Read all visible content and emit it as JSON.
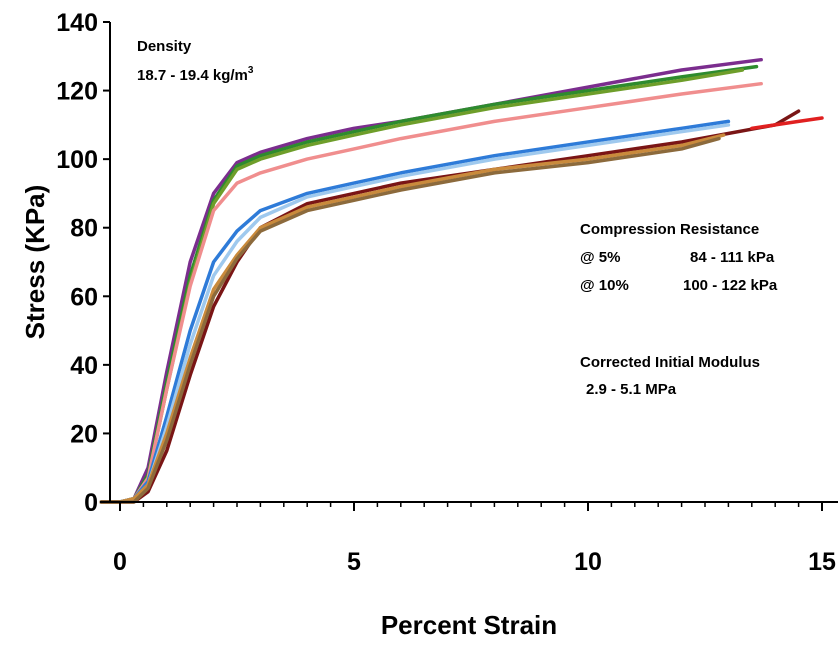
{
  "chart_data": {
    "type": "line",
    "title": "",
    "xlabel": "Percent Strain",
    "ylabel": "Stress (KPa)",
    "xlim": [
      0,
      15
    ],
    "ylim": [
      0,
      140
    ],
    "x_ticks": [
      0,
      5,
      10,
      15
    ],
    "y_ticks": [
      0,
      20,
      40,
      60,
      80,
      100,
      120,
      140
    ],
    "grid": false,
    "annotations": {
      "density_label": "Density",
      "density_value": "18.7 - 19.4 kg/m",
      "density_superscript": "3",
      "compression_title": "Compression Resistance",
      "at5_label": "@ 5%",
      "at5_value": "84 - 111 kPa",
      "at10_label": "@ 10%",
      "at10_value": "100 - 122 kPa",
      "modulus_title": "Corrected Initial Modulus",
      "modulus_value": "2.9 - 5.1 MPa"
    },
    "series": [
      {
        "color": "#7B2D8E",
        "x": [
          -0.4,
          0,
          0.3,
          0.6,
          1.0,
          1.5,
          2.0,
          2.5,
          3.0,
          4.0,
          5.0,
          6.0,
          8.0,
          10.0,
          12.0,
          13.7
        ],
        "y": [
          0,
          0,
          1,
          10,
          38,
          70,
          90,
          99,
          102,
          106,
          109,
          111,
          116,
          121,
          126,
          129
        ]
      },
      {
        "color": "#2E8B2E",
        "x": [
          -0.4,
          0,
          0.3,
          0.6,
          1.0,
          1.5,
          2.0,
          2.5,
          3.0,
          4.0,
          5.0,
          6.0,
          8.0,
          10.0,
          12.0,
          13.6
        ],
        "y": [
          0,
          0,
          1,
          8,
          35,
          66,
          88,
          98,
          101,
          105,
          108,
          111,
          116,
          120,
          124,
          127
        ]
      },
      {
        "color": "#6E9E2A",
        "x": [
          -0.4,
          0,
          0.3,
          0.6,
          1.0,
          1.5,
          2.0,
          2.5,
          3.0,
          4.0,
          5.0,
          6.0,
          8.0,
          10.0,
          12.0,
          13.3
        ],
        "y": [
          0,
          0,
          1,
          7,
          33,
          64,
          87,
          97,
          100,
          104,
          107,
          110,
          115,
          119,
          123,
          126
        ]
      },
      {
        "color": "#F08E8E",
        "x": [
          -0.4,
          0,
          0.3,
          0.6,
          1.0,
          1.5,
          2.0,
          2.5,
          3.0,
          4.0,
          5.0,
          6.0,
          8.0,
          10.0,
          12.0,
          13.7
        ],
        "y": [
          0,
          0,
          1,
          7,
          33,
          63,
          85,
          93,
          96,
          100,
          103,
          106,
          111,
          115,
          119,
          122
        ]
      },
      {
        "color": "#2E7BD8",
        "x": [
          -0.4,
          0,
          0.3,
          0.6,
          1.0,
          1.5,
          2.0,
          2.5,
          3.0,
          4.0,
          5.0,
          6.0,
          8.0,
          10.0,
          12.0,
          13.0
        ],
        "y": [
          0,
          0,
          1,
          6,
          25,
          50,
          70,
          79,
          85,
          90,
          93,
          96,
          101,
          105,
          109,
          111
        ]
      },
      {
        "color": "#9FC9EE",
        "x": [
          -0.4,
          0,
          0.3,
          0.6,
          1.0,
          1.5,
          2.0,
          2.5,
          3.0,
          4.0,
          5.0,
          6.0,
          8.0,
          10.0,
          12.0,
          13.0
        ],
        "y": [
          0,
          0,
          1,
          5,
          22,
          46,
          66,
          76,
          83,
          89,
          92,
          95,
          100,
          104,
          108,
          110
        ]
      },
      {
        "color": "#7A1515",
        "x": [
          -0.4,
          0,
          0.3,
          0.6,
          1.0,
          1.5,
          2.0,
          2.5,
          3.0,
          4.0,
          5.0,
          6.0,
          8.0,
          10.0,
          12.0,
          14.0,
          14.5
        ],
        "y": [
          0,
          0,
          0,
          3,
          15,
          37,
          57,
          70,
          80,
          87,
          90,
          93,
          97,
          101,
          105,
          110,
          114
        ]
      },
      {
        "color": "#E02020",
        "x": [
          13.5,
          14.0,
          14.5,
          15.0
        ],
        "y": [
          109,
          110,
          111,
          112
        ]
      },
      {
        "color": "#C98A3C",
        "x": [
          -0.4,
          0,
          0.3,
          0.6,
          1.0,
          1.5,
          2.0,
          2.5,
          3.0,
          4.0,
          5.0,
          6.0,
          8.0,
          10.0,
          12.0,
          12.9
        ],
        "y": [
          0,
          0,
          1,
          5,
          20,
          42,
          62,
          72,
          80,
          86,
          89,
          92,
          97,
          100,
          104,
          107
        ]
      },
      {
        "color": "#8C6A3C",
        "x": [
          -0.4,
          0,
          0.3,
          0.6,
          1.0,
          1.5,
          2.0,
          2.5,
          3.0,
          4.0,
          5.0,
          6.0,
          8.0,
          10.0,
          12.0,
          12.8
        ],
        "y": [
          0,
          0,
          0,
          4,
          18,
          40,
          60,
          71,
          79,
          85,
          88,
          91,
          96,
          99,
          103,
          106
        ]
      }
    ]
  }
}
